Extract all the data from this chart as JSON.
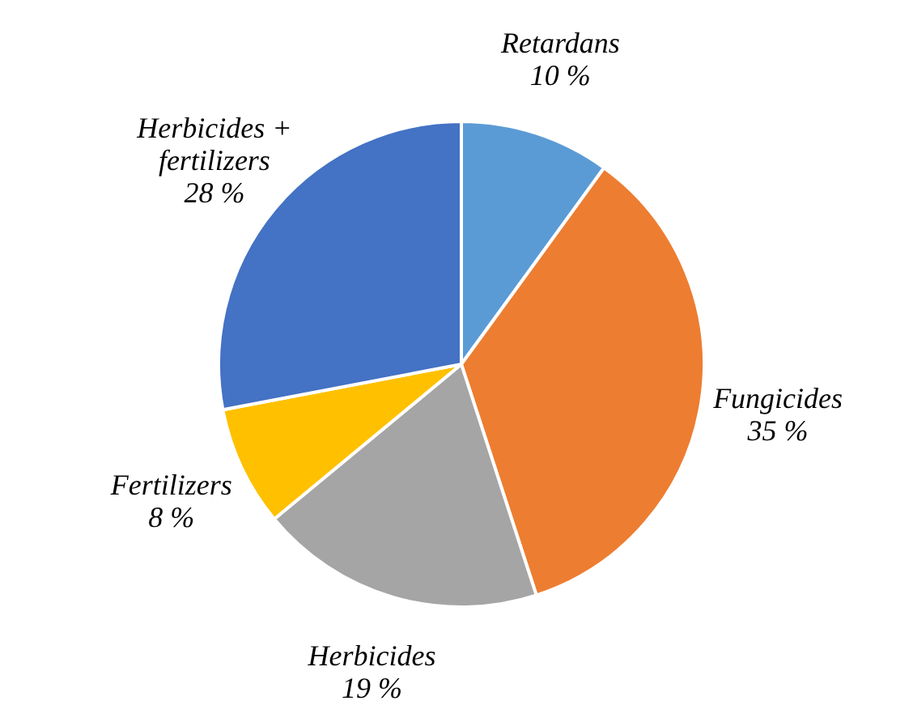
{
  "chart_data": {
    "type": "pie",
    "categories": [
      "Retardans",
      "Fungicides",
      "Herbicides",
      "Fertilizers",
      "Herbicides + fertilizers"
    ],
    "values": [
      10,
      35,
      19,
      8,
      28
    ],
    "colors": [
      "#5b9bd5",
      "#ed7d31",
      "#a5a5a5",
      "#ffc000",
      "#4472c4"
    ],
    "value_labels": [
      "10 %",
      "35 %",
      "19 %",
      "8 %",
      "28 %"
    ]
  }
}
